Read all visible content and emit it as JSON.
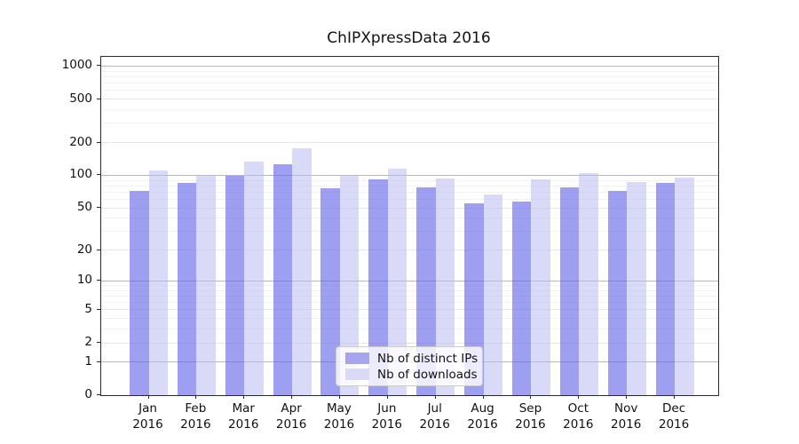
{
  "title": "ChIPXpressData 2016",
  "chart_data": {
    "type": "bar",
    "title": "ChIPXpressData 2016",
    "categories": [
      "Jan 2016",
      "Feb 2016",
      "Mar 2016",
      "Apr 2016",
      "May 2016",
      "Jun 2016",
      "Jul 2016",
      "Aug 2016",
      "Sep 2016",
      "Oct 2016",
      "Nov 2016",
      "Dec 2016"
    ],
    "x_tick_month": [
      "Jan",
      "Feb",
      "Mar",
      "Apr",
      "May",
      "Jun",
      "Jul",
      "Aug",
      "Sep",
      "Oct",
      "Nov",
      "Dec"
    ],
    "x_tick_year": "2016",
    "series": [
      {
        "name": "Nb of distinct IPs",
        "color": "rgba(100,100,232,0.62)",
        "legend_color": "#a6a6ef",
        "values": [
          72,
          85,
          99,
          126,
          76,
          92,
          78,
          55,
          57,
          77,
          72,
          85
        ]
      },
      {
        "name": "Nb of downloads",
        "color": "rgba(186,186,242,0.55)",
        "legend_color": "#d9d9f8",
        "values": [
          110,
          101,
          133,
          178,
          101,
          115,
          94,
          66,
          91,
          104,
          87,
          95
        ]
      }
    ],
    "yscale": "log1p",
    "yticks": [
      0,
      1,
      2,
      5,
      10,
      20,
      50,
      100,
      200,
      500,
      1000
    ],
    "yminors_per_decade": [
      3,
      4,
      6,
      7,
      8,
      9
    ],
    "ylim": [
      0,
      1216
    ],
    "grid": true,
    "legend_position": "lower center",
    "grid_color_major_pow10": "#b7b7b7",
    "grid_color_major": "#e6e6e6",
    "grid_color_minor": "#f2f2f2"
  }
}
